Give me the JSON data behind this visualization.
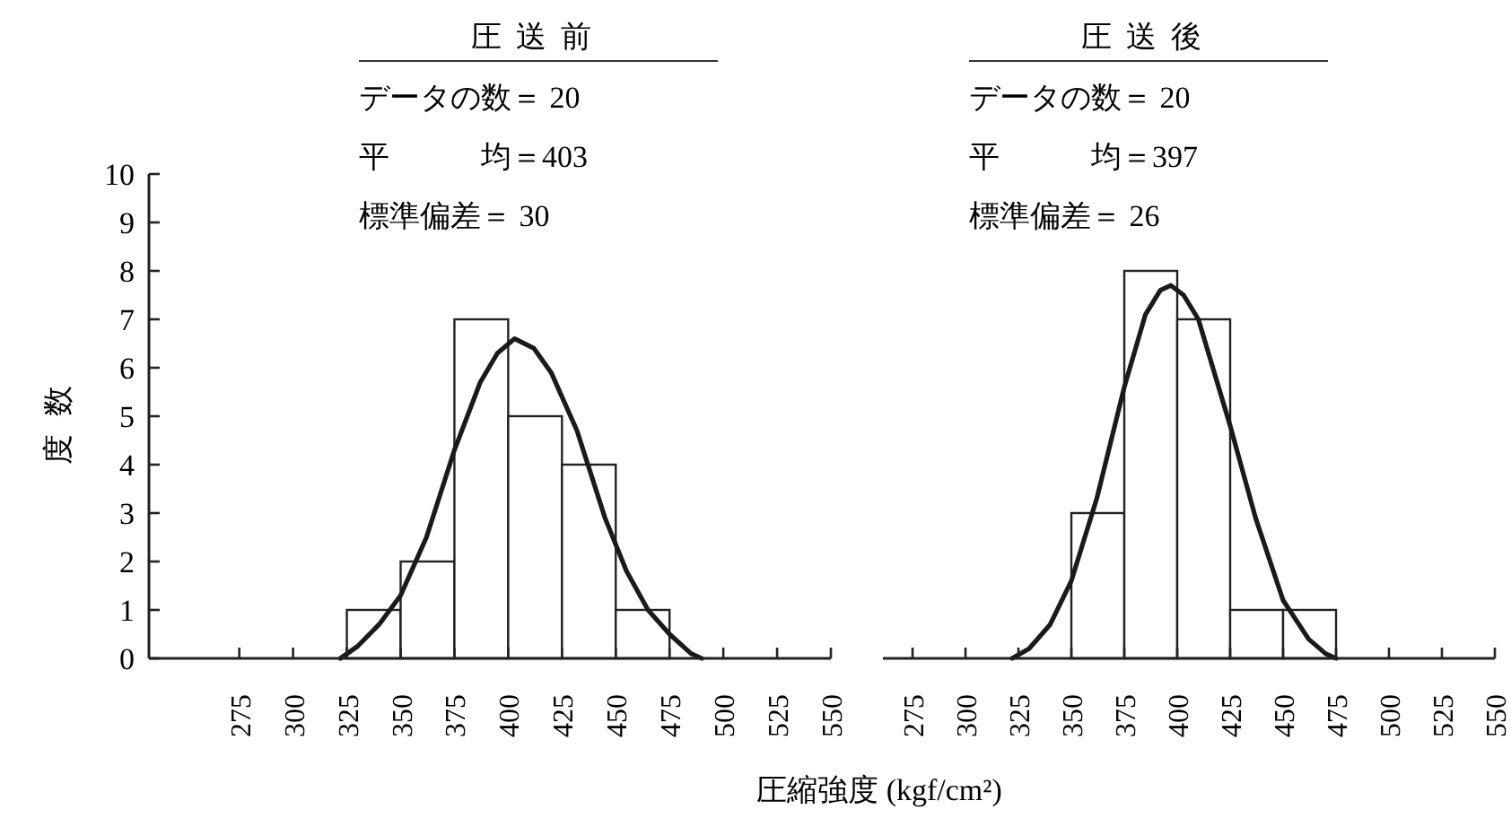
{
  "chart_data": [
    {
      "type": "histogram",
      "title": "圧送前",
      "ylabel": "度数",
      "xlabel": "圧縮強度 (kgf/cm²)",
      "annotations": [
        "データの数＝ 20",
        "平　　　均＝403",
        "標準偏差＝ 30"
      ],
      "bins": [
        325,
        350,
        375,
        400,
        425,
        450,
        475
      ],
      "values": [
        1,
        2,
        7,
        5,
        4,
        1
      ],
      "color": "#ffffff",
      "series": [
        {
          "type": "line",
          "color": "#1a1a1a",
          "x": [
            322,
            330,
            340,
            350,
            362,
            375,
            387,
            395,
            403,
            412,
            420,
            432,
            445,
            455,
            465,
            475,
            485,
            490
          ],
          "values": [
            0,
            0.25,
            0.7,
            1.3,
            2.5,
            4.3,
            5.7,
            6.3,
            6.6,
            6.4,
            5.9,
            4.7,
            2.9,
            1.8,
            1.0,
            0.5,
            0.1,
            0
          ]
        }
      ],
      "xlim": [
        233,
        550
      ],
      "xticks": [
        275,
        300,
        325,
        350,
        375,
        400,
        425,
        450,
        475,
        500,
        525,
        550
      ],
      "ylim": [
        0,
        10
      ],
      "yticks": [
        0,
        1,
        2,
        3,
        4,
        5,
        6,
        7,
        8,
        9,
        10
      ]
    },
    {
      "type": "histogram",
      "title": "圧送後",
      "annotations": [
        "データの数＝ 20",
        "平　　　均＝397",
        "標準偏差＝ 26"
      ],
      "bins": [
        350,
        375,
        400,
        425,
        450,
        475
      ],
      "values": [
        3,
        8,
        7,
        1,
        1
      ],
      "color": "#ffffff",
      "series": [
        {
          "type": "line",
          "color": "#1a1a1a",
          "x": [
            322,
            330,
            340,
            350,
            362,
            375,
            385,
            392,
            397,
            403,
            410,
            425,
            437,
            450,
            462,
            470,
            475
          ],
          "values": [
            0,
            0.2,
            0.7,
            1.6,
            3.3,
            5.6,
            7.1,
            7.6,
            7.7,
            7.5,
            7.0,
            4.8,
            2.9,
            1.2,
            0.4,
            0.1,
            0
          ]
        }
      ],
      "xlim": [
        261,
        550
      ],
      "xticks": [
        275,
        300,
        325,
        350,
        375,
        400,
        425,
        450,
        475,
        500,
        525,
        550
      ],
      "ylim": [
        0,
        10
      ],
      "tick_labels": "x"
    }
  ]
}
